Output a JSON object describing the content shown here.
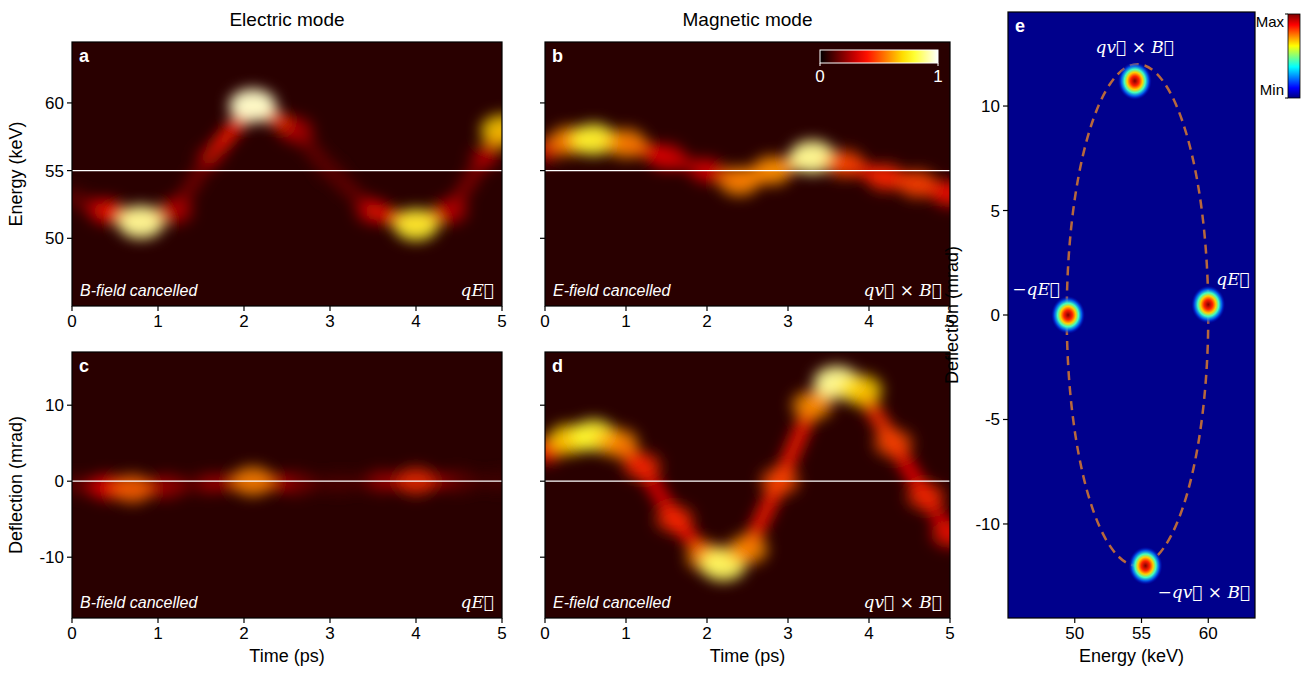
{
  "chart_data": [
    {
      "type": "heatmap",
      "panel": "a",
      "title": "Electric mode",
      "y_label": "Energy (keV)",
      "annotations": [
        "B-field cancelled",
        "qE⃗"
      ],
      "x": [
        0,
        0.4,
        0.8,
        1.2,
        1.6,
        2.1,
        2.6,
        3.0,
        3.5,
        4.0,
        4.4,
        4.8,
        5.0
      ],
      "values": [
        53,
        52,
        51.2,
        52,
        56,
        59.8,
        58,
        55,
        52,
        51,
        52,
        56,
        58
      ],
      "intensity": [
        0.1,
        0.35,
        0.9,
        0.3,
        0.15,
        0.95,
        0.3,
        0.1,
        0.3,
        0.8,
        0.3,
        0.2,
        0.7
      ],
      "reference_line": 55,
      "xlim": [
        0,
        5
      ],
      "xticks": [
        0,
        1,
        2,
        3,
        4,
        5
      ],
      "ylim": [
        45,
        64.5
      ],
      "yticks": [
        50,
        55,
        60
      ]
    },
    {
      "type": "heatmap",
      "panel": "b",
      "title": "Magnetic mode",
      "annotations": [
        "E-field cancelled",
        "qv⃗ × B⃗"
      ],
      "x": [
        0,
        0.3,
        0.6,
        1.0,
        1.5,
        2.0,
        2.4,
        2.8,
        3.3,
        3.7,
        4.2,
        4.6,
        5.0
      ],
      "values": [
        56.5,
        57.2,
        57.3,
        57,
        56,
        55,
        54.2,
        55,
        56,
        55.5,
        54.5,
        54,
        53.3
      ],
      "intensity": [
        0.3,
        0.6,
        0.8,
        0.6,
        0.35,
        0.3,
        0.6,
        0.6,
        0.9,
        0.5,
        0.45,
        0.5,
        0.4
      ],
      "reference_line": 55,
      "colorbar": {
        "range": [
          0,
          1
        ],
        "ticks": [
          0,
          1
        ]
      },
      "tick_labels": "x",
      "xlim": [
        0,
        5
      ],
      "xticks": [
        0,
        1,
        2,
        3,
        4,
        5
      ],
      "ylim": [
        45,
        64.5
      ],
      "yticks": [
        50,
        55,
        60
      ]
    },
    {
      "type": "heatmap",
      "panel": "c",
      "x_label": "Time (ps)",
      "y_label": "Deflection (mrad)",
      "annotations": [
        "B-field cancelled",
        "qE⃗"
      ],
      "x": [
        0,
        0.4,
        0.7,
        1.1,
        1.6,
        2.1,
        2.6,
        3.1,
        3.6,
        4.0,
        4.5,
        5.0
      ],
      "values": [
        -0.5,
        -0.8,
        -1,
        -0.7,
        -0.3,
        0,
        -0.3,
        -0.3,
        0,
        0,
        0,
        0
      ],
      "intensity": [
        0.1,
        0.35,
        0.55,
        0.25,
        0.15,
        0.6,
        0.2,
        0.1,
        0.2,
        0.45,
        0.15,
        0.1
      ],
      "reference_line": 0,
      "xlim": [
        0,
        5
      ],
      "xticks": [
        0,
        1,
        2,
        3,
        4,
        5
      ],
      "ylim": [
        -18,
        17
      ],
      "yticks": [
        -10,
        0,
        10
      ]
    },
    {
      "type": "heatmap",
      "panel": "d",
      "x_label": "Time (ps)",
      "annotations": [
        "E-field cancelled",
        "qv⃗ × B⃗"
      ],
      "x": [
        0,
        0.3,
        0.6,
        0.9,
        1.2,
        1.6,
        2.0,
        2.2,
        2.5,
        2.9,
        3.3,
        3.6,
        3.9,
        4.3,
        4.7,
        5.0
      ],
      "values": [
        4,
        5.5,
        6,
        5,
        2,
        -5,
        -10,
        -11,
        -9,
        0,
        10,
        13,
        12,
        5,
        -2,
        -7
      ],
      "intensity": [
        0.4,
        0.7,
        0.8,
        0.6,
        0.45,
        0.45,
        0.6,
        0.85,
        0.6,
        0.5,
        0.6,
        0.9,
        0.7,
        0.5,
        0.45,
        0.4
      ],
      "reference_line": 0,
      "tick_labels": "x",
      "xlim": [
        0,
        5
      ],
      "xticks": [
        0,
        1,
        2,
        3,
        4,
        5
      ],
      "ylim": [
        -18,
        17
      ],
      "yticks": [
        -10,
        0,
        10
      ]
    },
    {
      "type": "scatter",
      "panel": "e",
      "x_label": "Energy (keV)",
      "y_label": "Deflection (mrad)",
      "x": [
        54.5,
        49.5,
        60,
        55.3
      ],
      "values": [
        11.2,
        0,
        0.5,
        -12
      ],
      "labels": [
        "qv⃗ × B⃗",
        "−qE⃗",
        "qE⃗",
        "−qv⃗ × B⃗"
      ],
      "ellipse": {
        "center": [
          54.7,
          0
        ],
        "radii": [
          5.3,
          12
        ]
      },
      "colorbar": {
        "range": [
          0,
          1
        ],
        "ticks": [
          {
            "value": 0,
            "label": "Min"
          },
          {
            "value": 1,
            "label": "Max"
          }
        ]
      },
      "xlim": [
        45,
        63.5
      ],
      "xticks": [
        50,
        55,
        60
      ],
      "ylim": [
        -14.5,
        14.5
      ],
      "yticks": [
        -10,
        -5,
        0,
        5,
        10
      ]
    }
  ]
}
